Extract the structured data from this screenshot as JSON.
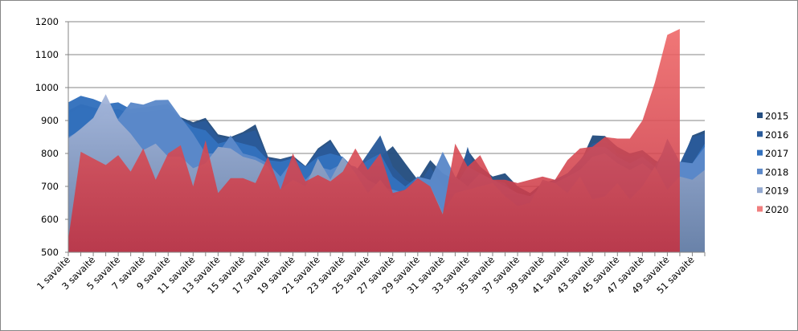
{
  "chart_data": {
    "type": "area",
    "title": "",
    "xlabel": "",
    "ylabel": "",
    "ylim": [
      500,
      1200
    ],
    "yticks": [
      "500",
      "600",
      "700",
      "800",
      "900",
      "1000",
      "1100",
      "1200"
    ],
    "grid": true,
    "legend_position": "right",
    "x_label_suffix": "savaitė",
    "categories": [
      1,
      2,
      3,
      4,
      5,
      6,
      7,
      8,
      9,
      10,
      11,
      12,
      13,
      14,
      15,
      16,
      17,
      18,
      19,
      20,
      21,
      22,
      23,
      24,
      25,
      26,
      27,
      28,
      29,
      30,
      31,
      32,
      33,
      34,
      35,
      36,
      37,
      38,
      39,
      40,
      41,
      42,
      43,
      44,
      45,
      46,
      47,
      48,
      49,
      50,
      51,
      52
    ],
    "series": [
      {
        "name": "2015",
        "color": "#254e80",
        "values": [
          930,
          950,
          940,
          930,
          935,
          920,
          925,
          930,
          935,
          910,
          895,
          908,
          858,
          850,
          865,
          888,
          790,
          783,
          793,
          762,
          815,
          842,
          783,
          740,
          745,
          790,
          822,
          770,
          720,
          780,
          740,
          720,
          810,
          760,
          730,
          740,
          700,
          680,
          710,
          720,
          740,
          770,
          855,
          853,
          820,
          800,
          810,
          780,
          760,
          760,
          855,
          870
        ]
      },
      {
        "name": "2016",
        "color": "#2a5b9a",
        "values": [
          920,
          940,
          930,
          920,
          930,
          910,
          920,
          925,
          930,
          905,
          890,
          900,
          850,
          845,
          860,
          870,
          785,
          780,
          790,
          760,
          810,
          835,
          780,
          745,
          800,
          855,
          760,
          720,
          700,
          760,
          700,
          680,
          820,
          700,
          710,
          700,
          680,
          670,
          700,
          720,
          740,
          780,
          830,
          840,
          800,
          790,
          800,
          770,
          790,
          770,
          850,
          860
        ]
      },
      {
        "name": "2017",
        "color": "#3371bd",
        "values": [
          955,
          975,
          965,
          950,
          955,
          935,
          940,
          945,
          950,
          905,
          880,
          870,
          830,
          840,
          830,
          820,
          780,
          775,
          785,
          760,
          790,
          800,
          790,
          750,
          780,
          800,
          730,
          700,
          730,
          720,
          690,
          700,
          760,
          740,
          720,
          710,
          670,
          660,
          700,
          720,
          740,
          780,
          820,
          820,
          790,
          770,
          790,
          760,
          830,
          770,
          770,
          830
        ]
      },
      {
        "name": "2018",
        "color": "#5c89c9",
        "values": [
          850,
          870,
          890,
          920,
          905,
          955,
          948,
          962,
          963,
          910,
          860,
          800,
          800,
          855,
          800,
          790,
          770,
          730,
          780,
          720,
          760,
          750,
          770,
          760,
          720,
          700,
          690,
          680,
          730,
          720,
          805,
          730,
          700,
          740,
          720,
          700,
          680,
          670,
          700,
          710,
          730,
          750,
          790,
          800,
          770,
          750,
          770,
          740,
          845,
          775,
          770,
          820
        ]
      },
      {
        "name": "2019",
        "color": "#94a9d0",
        "values": [
          845,
          875,
          908,
          980,
          900,
          860,
          810,
          830,
          790,
          790,
          755,
          770,
          820,
          815,
          790,
          780,
          760,
          690,
          720,
          700,
          785,
          720,
          790,
          740,
          680,
          720,
          670,
          690,
          720,
          700,
          620,
          680,
          690,
          700,
          710,
          670,
          640,
          650,
          720,
          710,
          680,
          730,
          660,
          670,
          710,
          660,
          700,
          760,
          690,
          730,
          720,
          750
        ]
      },
      {
        "name": "2020",
        "color": "#f07f7f",
        "values": [
          540,
          805,
          785,
          765,
          795,
          745,
          815,
          720,
          800,
          825,
          700,
          840,
          680,
          725,
          725,
          710,
          790,
          690,
          800,
          715,
          735,
          715,
          745,
          815,
          750,
          800,
          680,
          690,
          725,
          700,
          615,
          830,
          760,
          795,
          720,
          720,
          710,
          720,
          730,
          720,
          780,
          815,
          820,
          850,
          845,
          845,
          900,
          1015,
          1160,
          1178,
          null,
          null
        ]
      }
    ]
  }
}
